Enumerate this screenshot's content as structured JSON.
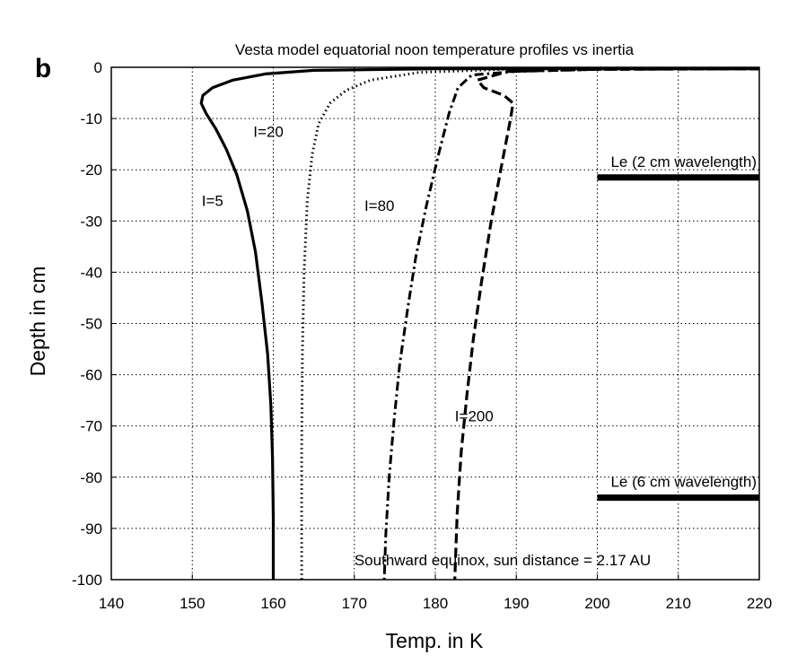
{
  "panel_label": "b",
  "chart_data": {
    "type": "line",
    "title": "Vesta model equatorial noon temperature profiles vs inertia",
    "xlabel": "Temp. in K",
    "ylabel": "Depth in cm",
    "xlim": [
      140,
      220
    ],
    "ylim": [
      -100,
      0
    ],
    "xticks": [
      140,
      150,
      160,
      170,
      180,
      190,
      200,
      210,
      220
    ],
    "yticks": [
      0,
      -10,
      -20,
      -30,
      -40,
      -50,
      -60,
      -70,
      -80,
      -90,
      -100
    ],
    "grid": true,
    "series": [
      {
        "name": "I=5",
        "style": "solid",
        "x": [
          220,
          180,
          165,
          159,
          155,
          152.5,
          151.3,
          151.1,
          151.7,
          152.9,
          154.2,
          155.5,
          156.8,
          157.8,
          158.6,
          159.3,
          159.7,
          159.9,
          160,
          160
        ],
        "y": [
          -0.3,
          -0.3,
          -0.6,
          -1.3,
          -2.5,
          -4,
          -5.5,
          -7,
          -9,
          -12,
          -16,
          -21,
          -28,
          -36,
          -46,
          -56,
          -66,
          -76,
          -88,
          -100
        ]
      },
      {
        "name": "I=20",
        "style": "dotted",
        "x": [
          220,
          190,
          178,
          172,
          169,
          167,
          165.6,
          164.8,
          164.2,
          163.8,
          163.6,
          163.5,
          163.5
        ],
        "y": [
          -0.3,
          -0.3,
          -1,
          -2.5,
          -4.5,
          -7,
          -11,
          -17,
          -26,
          -40,
          -55,
          -75,
          -100
        ]
      },
      {
        "name": "I=80",
        "style": "dashdot",
        "x": [
          220,
          200,
          190,
          184.5,
          182.8,
          181.7,
          180.4,
          178.9,
          177.6,
          176.6,
          175.6,
          174.9,
          174.3,
          173.9,
          173.7
        ],
        "y": [
          -0.3,
          -0.4,
          -0.8,
          -1.5,
          -4,
          -9,
          -17,
          -27,
          -37,
          -47,
          -58,
          -69,
          -80,
          -91,
          -100
        ]
      },
      {
        "name": "I=200",
        "style": "dashed",
        "x": [
          220,
          200,
          189,
          185.2,
          186,
          188.5,
          189.6,
          189.3,
          188.2,
          186.9,
          185.7,
          184.7,
          183.9,
          183.2,
          182.7,
          182.4
        ],
        "y": [
          -0.3,
          -0.4,
          -0.8,
          -2.5,
          -4,
          -5.5,
          -7,
          -10,
          -19,
          -30,
          -42,
          -53,
          -64,
          -75,
          -87,
          -100
        ]
      }
    ],
    "reference_bars": [
      {
        "label": "Le (2 cm wavelength)",
        "x": [
          200,
          220
        ],
        "y": -21.5
      },
      {
        "label": "Le (6 cm wavelength)",
        "x": [
          200,
          220
        ],
        "y": -84
      }
    ],
    "annotation": "Southward equinox, sun distance = 2.17 AU"
  }
}
